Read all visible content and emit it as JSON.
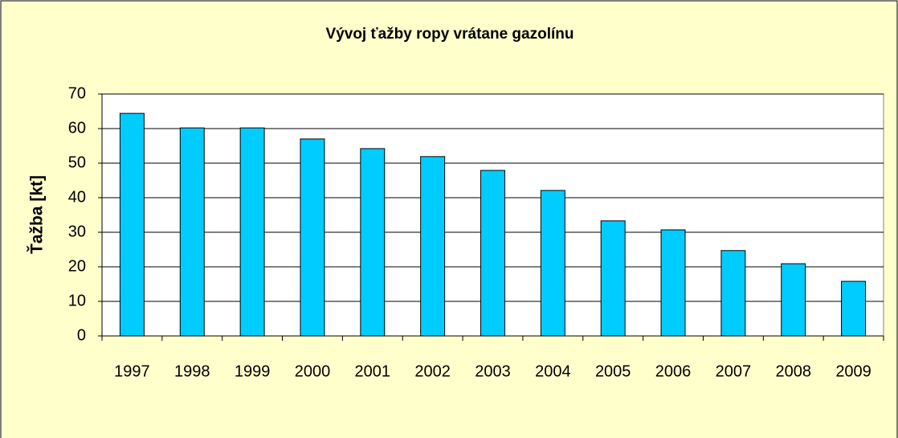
{
  "chart_data": {
    "type": "bar",
    "title": "Vývoj ťažby ropy vrátane gazolínu",
    "y_label": "Ťažba [kt]",
    "categories": [
      "1997",
      "1998",
      "1999",
      "2000",
      "2001",
      "2002",
      "2003",
      "2004",
      "2005",
      "2006",
      "2007",
      "2008",
      "2009"
    ],
    "values": [
      64.4,
      60.2,
      60.2,
      57.0,
      54.2,
      51.9,
      47.9,
      42.1,
      33.3,
      30.7,
      24.7,
      20.9,
      15.8
    ],
    "color": "#00ccff",
    "ylim": [
      0,
      70
    ],
    "yticks": [
      0,
      10,
      20,
      30,
      40,
      50,
      60,
      70
    ],
    "grid": true
  }
}
